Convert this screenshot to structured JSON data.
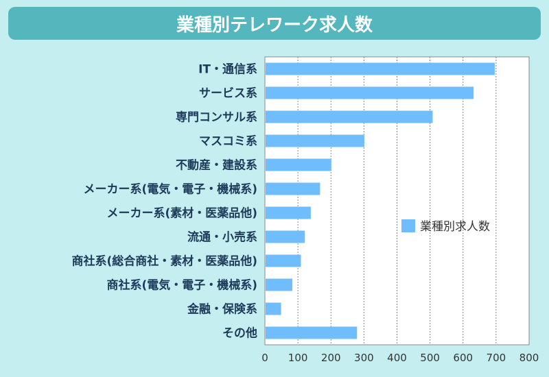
{
  "chart_data": {
    "type": "bar",
    "orientation": "horizontal",
    "title": "業種別テレワーク求人数",
    "categories": [
      "IT・通信系",
      "サービス系",
      "専門コンサル系",
      "マスコミ系",
      "不動産・建設系",
      "メーカー系(電気・電子・機械系)",
      "メーカー系(素材・医薬品他)",
      "流通・小売系",
      "商社系(総合商社・素材・医薬品他)",
      "商社系(電気・電子・機械系)",
      "金融・保険系",
      "その他"
    ],
    "series": [
      {
        "name": "業種別求人数",
        "values": [
          696,
          632,
          508,
          301,
          201,
          167,
          139,
          121,
          109,
          83,
          49,
          279
        ]
      }
    ],
    "xlim": [
      0,
      800
    ],
    "xticks": [
      0,
      100,
      200,
      300,
      400,
      500,
      600,
      700,
      800
    ],
    "grid": true,
    "legend": "center-right",
    "colors": {
      "bar": "#70bdfd",
      "title_bg": "#54b7bd",
      "background": "#c5eef0"
    }
  }
}
